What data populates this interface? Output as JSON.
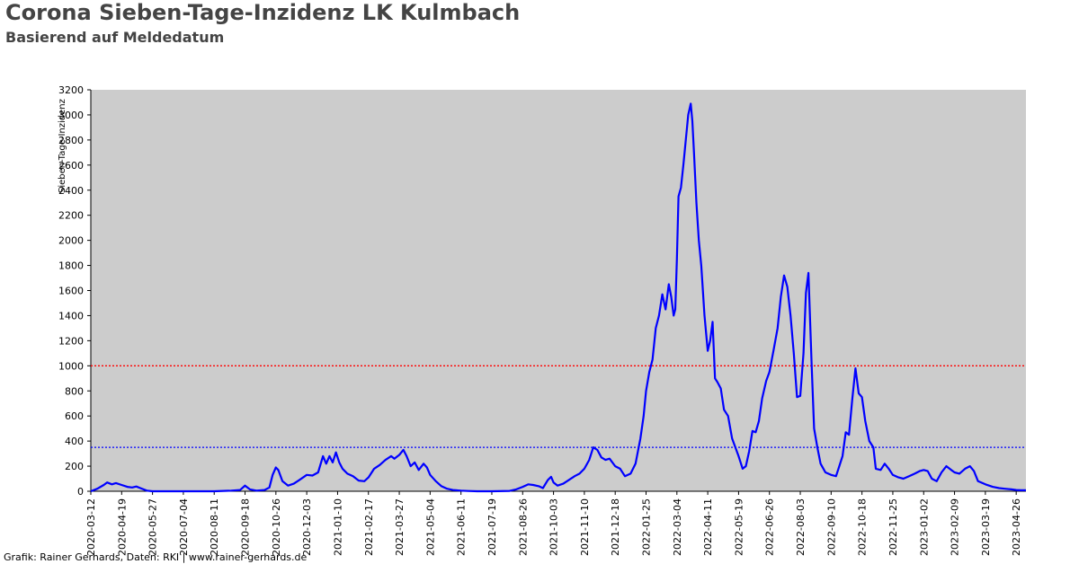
{
  "title": "Corona Sieben-Tage-Inzidenz LK Kulmbach",
  "subtitle": "Basierend auf Meldedatum",
  "footer": "Grafik: Rainer Gerhards, Daten: RKI | www.rainer-gerhards.de",
  "colors": {
    "plot_bg": "#cccccc",
    "line": "#0000ff",
    "ref_red": "#ff0000",
    "ref_blue": "#0000ff"
  },
  "chart_data": {
    "type": "line",
    "title": "Corona Sieben-Tage-Inzidenz LK Kulmbach",
    "subtitle": "Basierend auf Meldedatum",
    "ylabel": "Sieben-Tage-Inzidenz",
    "xlabel": "",
    "ylim": [
      0,
      3200
    ],
    "xlim": [
      "2020-03-12",
      "2023-05-08"
    ],
    "grid": false,
    "y_ticks": [
      0,
      200,
      400,
      600,
      800,
      1000,
      1200,
      1400,
      1600,
      1800,
      2000,
      2200,
      2400,
      2600,
      2800,
      3000,
      3200
    ],
    "x_ticks": [
      "2020-03-12",
      "2020-04-19",
      "2020-05-27",
      "2020-07-04",
      "2020-08-11",
      "2020-09-18",
      "2020-10-26",
      "2020-12-03",
      "2021-01-10",
      "2021-02-17",
      "2021-03-27",
      "2021-05-04",
      "2021-06-11",
      "2021-07-19",
      "2021-08-26",
      "2021-10-03",
      "2021-11-10",
      "2021-12-18",
      "2022-01-25",
      "2022-03-04",
      "2022-04-11",
      "2022-05-19",
      "2022-06-26",
      "2022-08-03",
      "2022-09-10",
      "2022-10-18",
      "2022-11-25",
      "2023-01-02",
      "2023-02-09",
      "2023-03-19",
      "2023-04-26"
    ],
    "reference_lines": [
      {
        "y": 1000,
        "color": "#ff0000",
        "style": "dotted"
      },
      {
        "y": 350,
        "color": "#0000ff",
        "style": "dotted"
      }
    ],
    "series": [
      {
        "color": "#0000ff",
        "points": [
          [
            "2020-03-12",
            0
          ],
          [
            "2020-03-20",
            20
          ],
          [
            "2020-03-28",
            50
          ],
          [
            "2020-04-01",
            70
          ],
          [
            "2020-04-07",
            55
          ],
          [
            "2020-04-12",
            65
          ],
          [
            "2020-04-19",
            50
          ],
          [
            "2020-04-26",
            35
          ],
          [
            "2020-05-02",
            30
          ],
          [
            "2020-05-07",
            38
          ],
          [
            "2020-05-12",
            25
          ],
          [
            "2020-05-20",
            5
          ],
          [
            "2020-05-27",
            0
          ],
          [
            "2020-08-11",
            0
          ],
          [
            "2020-09-01",
            5
          ],
          [
            "2020-09-12",
            10
          ],
          [
            "2020-09-18",
            45
          ],
          [
            "2020-09-24",
            15
          ],
          [
            "2020-10-02",
            5
          ],
          [
            "2020-10-12",
            10
          ],
          [
            "2020-10-18",
            30
          ],
          [
            "2020-10-22",
            130
          ],
          [
            "2020-10-26",
            190
          ],
          [
            "2020-10-29",
            170
          ],
          [
            "2020-11-03",
            80
          ],
          [
            "2020-11-10",
            45
          ],
          [
            "2020-11-17",
            60
          ],
          [
            "2020-11-24",
            90
          ],
          [
            "2020-12-03",
            130
          ],
          [
            "2020-12-10",
            125
          ],
          [
            "2020-12-17",
            150
          ],
          [
            "2020-12-23",
            280
          ],
          [
            "2020-12-27",
            220
          ],
          [
            "2020-12-31",
            280
          ],
          [
            "2021-01-04",
            230
          ],
          [
            "2021-01-08",
            310
          ],
          [
            "2021-01-12",
            230
          ],
          [
            "2021-01-16",
            180
          ],
          [
            "2021-01-22",
            140
          ],
          [
            "2021-01-29",
            120
          ],
          [
            "2021-02-05",
            85
          ],
          [
            "2021-02-12",
            80
          ],
          [
            "2021-02-17",
            110
          ],
          [
            "2021-02-24",
            180
          ],
          [
            "2021-03-03",
            210
          ],
          [
            "2021-03-10",
            250
          ],
          [
            "2021-03-17",
            280
          ],
          [
            "2021-03-21",
            260
          ],
          [
            "2021-03-27",
            290
          ],
          [
            "2021-04-01",
            330
          ],
          [
            "2021-04-05",
            280
          ],
          [
            "2021-04-10",
            200
          ],
          [
            "2021-04-15",
            230
          ],
          [
            "2021-04-20",
            170
          ],
          [
            "2021-04-26",
            220
          ],
          [
            "2021-04-30",
            190
          ],
          [
            "2021-05-04",
            130
          ],
          [
            "2021-05-11",
            80
          ],
          [
            "2021-05-18",
            40
          ],
          [
            "2021-05-25",
            20
          ],
          [
            "2021-06-01",
            10
          ],
          [
            "2021-06-11",
            5
          ],
          [
            "2021-06-20",
            2
          ],
          [
            "2021-07-01",
            0
          ],
          [
            "2021-07-19",
            0
          ],
          [
            "2021-08-10",
            3
          ],
          [
            "2021-08-18",
            15
          ],
          [
            "2021-08-26",
            35
          ],
          [
            "2021-09-02",
            55
          ],
          [
            "2021-09-08",
            50
          ],
          [
            "2021-09-15",
            40
          ],
          [
            "2021-09-20",
            25
          ],
          [
            "2021-09-26",
            90
          ],
          [
            "2021-09-30",
            115
          ],
          [
            "2021-10-03",
            70
          ],
          [
            "2021-10-08",
            45
          ],
          [
            "2021-10-15",
            60
          ],
          [
            "2021-10-22",
            90
          ],
          [
            "2021-10-29",
            120
          ],
          [
            "2021-11-04",
            140
          ],
          [
            "2021-11-10",
            180
          ],
          [
            "2021-11-16",
            250
          ],
          [
            "2021-11-21",
            350
          ],
          [
            "2021-11-26",
            330
          ],
          [
            "2021-12-01",
            270
          ],
          [
            "2021-12-06",
            250
          ],
          [
            "2021-12-11",
            260
          ],
          [
            "2021-12-18",
            200
          ],
          [
            "2021-12-24",
            180
          ],
          [
            "2021-12-30",
            120
          ],
          [
            "2022-01-06",
            140
          ],
          [
            "2022-01-12",
            220
          ],
          [
            "2022-01-18",
            420
          ],
          [
            "2022-01-22",
            600
          ],
          [
            "2022-01-25",
            800
          ],
          [
            "2022-01-29",
            950
          ],
          [
            "2022-02-02",
            1050
          ],
          [
            "2022-02-06",
            1300
          ],
          [
            "2022-02-10",
            1400
          ],
          [
            "2022-02-14",
            1570
          ],
          [
            "2022-02-18",
            1450
          ],
          [
            "2022-02-22",
            1650
          ],
          [
            "2022-02-25",
            1550
          ],
          [
            "2022-02-28",
            1400
          ],
          [
            "2022-03-02",
            1450
          ],
          [
            "2022-03-04",
            1850
          ],
          [
            "2022-03-06",
            2350
          ],
          [
            "2022-03-09",
            2420
          ],
          [
            "2022-03-12",
            2600
          ],
          [
            "2022-03-15",
            2800
          ],
          [
            "2022-03-18",
            3000
          ],
          [
            "2022-03-21",
            3090
          ],
          [
            "2022-03-23",
            2950
          ],
          [
            "2022-03-25",
            2700
          ],
          [
            "2022-03-28",
            2300
          ],
          [
            "2022-03-31",
            2000
          ],
          [
            "2022-04-03",
            1800
          ],
          [
            "2022-04-07",
            1400
          ],
          [
            "2022-04-11",
            1120
          ],
          [
            "2022-04-14",
            1200
          ],
          [
            "2022-04-17",
            1350
          ],
          [
            "2022-04-20",
            900
          ],
          [
            "2022-04-23",
            870
          ],
          [
            "2022-04-27",
            820
          ],
          [
            "2022-05-01",
            650
          ],
          [
            "2022-05-06",
            600
          ],
          [
            "2022-05-11",
            420
          ],
          [
            "2022-05-19",
            280
          ],
          [
            "2022-05-24",
            180
          ],
          [
            "2022-05-28",
            200
          ],
          [
            "2022-06-01",
            320
          ],
          [
            "2022-06-05",
            480
          ],
          [
            "2022-06-09",
            470
          ],
          [
            "2022-06-13",
            560
          ],
          [
            "2022-06-17",
            740
          ],
          [
            "2022-06-22",
            880
          ],
          [
            "2022-06-26",
            950
          ],
          [
            "2022-07-01",
            1120
          ],
          [
            "2022-07-06",
            1300
          ],
          [
            "2022-07-10",
            1550
          ],
          [
            "2022-07-14",
            1720
          ],
          [
            "2022-07-18",
            1630
          ],
          [
            "2022-07-22",
            1400
          ],
          [
            "2022-07-26",
            1100
          ],
          [
            "2022-07-30",
            750
          ],
          [
            "2022-08-03",
            760
          ],
          [
            "2022-08-07",
            1100
          ],
          [
            "2022-08-10",
            1580
          ],
          [
            "2022-08-13",
            1740
          ],
          [
            "2022-08-17",
            1000
          ],
          [
            "2022-08-20",
            500
          ],
          [
            "2022-08-24",
            350
          ],
          [
            "2022-08-28",
            220
          ],
          [
            "2022-09-03",
            150
          ],
          [
            "2022-09-10",
            130
          ],
          [
            "2022-09-16",
            120
          ],
          [
            "2022-09-20",
            200
          ],
          [
            "2022-09-24",
            280
          ],
          [
            "2022-09-28",
            470
          ],
          [
            "2022-10-02",
            450
          ],
          [
            "2022-10-06",
            730
          ],
          [
            "2022-10-10",
            980
          ],
          [
            "2022-10-14",
            780
          ],
          [
            "2022-10-18",
            750
          ],
          [
            "2022-10-22",
            560
          ],
          [
            "2022-10-27",
            400
          ],
          [
            "2022-11-01",
            350
          ],
          [
            "2022-11-04",
            180
          ],
          [
            "2022-11-10",
            170
          ],
          [
            "2022-11-15",
            220
          ],
          [
            "2022-11-20",
            180
          ],
          [
            "2022-11-25",
            130
          ],
          [
            "2022-12-02",
            110
          ],
          [
            "2022-12-08",
            100
          ],
          [
            "2022-12-15",
            120
          ],
          [
            "2022-12-22",
            140
          ],
          [
            "2022-12-28",
            160
          ],
          [
            "2023-01-02",
            170
          ],
          [
            "2023-01-07",
            160
          ],
          [
            "2023-01-12",
            100
          ],
          [
            "2023-01-18",
            80
          ],
          [
            "2023-01-24",
            150
          ],
          [
            "2023-01-30",
            200
          ],
          [
            "2023-02-05",
            170
          ],
          [
            "2023-02-09",
            150
          ],
          [
            "2023-02-15",
            140
          ],
          [
            "2023-02-22",
            180
          ],
          [
            "2023-02-28",
            200
          ],
          [
            "2023-03-05",
            160
          ],
          [
            "2023-03-10",
            80
          ],
          [
            "2023-03-19",
            55
          ],
          [
            "2023-03-28",
            35
          ],
          [
            "2023-04-05",
            25
          ],
          [
            "2023-04-12",
            20
          ],
          [
            "2023-04-20",
            15
          ],
          [
            "2023-04-26",
            10
          ],
          [
            "2023-05-02",
            8
          ],
          [
            "2023-05-08",
            8
          ]
        ]
      }
    ]
  }
}
